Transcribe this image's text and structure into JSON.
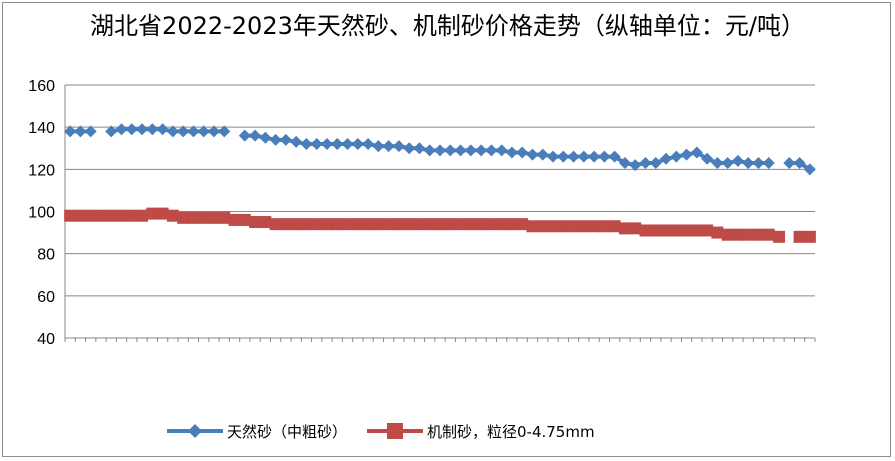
{
  "chart_data": {
    "type": "line",
    "title": "湖北省2022-2023年天然砂、机制砂价格走势（纵轴单位：元/吨）",
    "ylim": [
      40,
      160
    ],
    "yticks": [
      40,
      60,
      80,
      100,
      120,
      140,
      160
    ],
    "grid": true,
    "legend_position": "bottom",
    "series": [
      {
        "name": "天然砂（中粗砂）",
        "color": "#4a7ebb",
        "marker": "diamond",
        "values": [
          138,
          138,
          138,
          null,
          138,
          139,
          139,
          139,
          139,
          139,
          138,
          138,
          138,
          138,
          138,
          138,
          null,
          136,
          136,
          135,
          134,
          134,
          133,
          132,
          132,
          132,
          132,
          132,
          132,
          132,
          131,
          131,
          131,
          130,
          130,
          129,
          129,
          129,
          129,
          129,
          129,
          129,
          129,
          128,
          128,
          127,
          127,
          126,
          126,
          126,
          126,
          126,
          126,
          126,
          123,
          122,
          123,
          123,
          125,
          126,
          127,
          128,
          125,
          123,
          123,
          124,
          123,
          123,
          123,
          null,
          123,
          123,
          120
        ]
      },
      {
        "name": "机制砂，粒径0-4.75mm",
        "color": "#be4b48",
        "marker": "square",
        "values": [
          98,
          98,
          98,
          98,
          98,
          98,
          98,
          98,
          99,
          99,
          98,
          97,
          97,
          97,
          97,
          97,
          96,
          96,
          95,
          95,
          94,
          94,
          94,
          94,
          94,
          94,
          94,
          94,
          94,
          94,
          94,
          94,
          94,
          94,
          94,
          94,
          94,
          94,
          94,
          94,
          94,
          94,
          94,
          94,
          94,
          93,
          93,
          93,
          93,
          93,
          93,
          93,
          93,
          93,
          92,
          92,
          91,
          91,
          91,
          91,
          91,
          91,
          91,
          90,
          89,
          89,
          89,
          89,
          89,
          88,
          null,
          88,
          88
        ]
      }
    ]
  }
}
